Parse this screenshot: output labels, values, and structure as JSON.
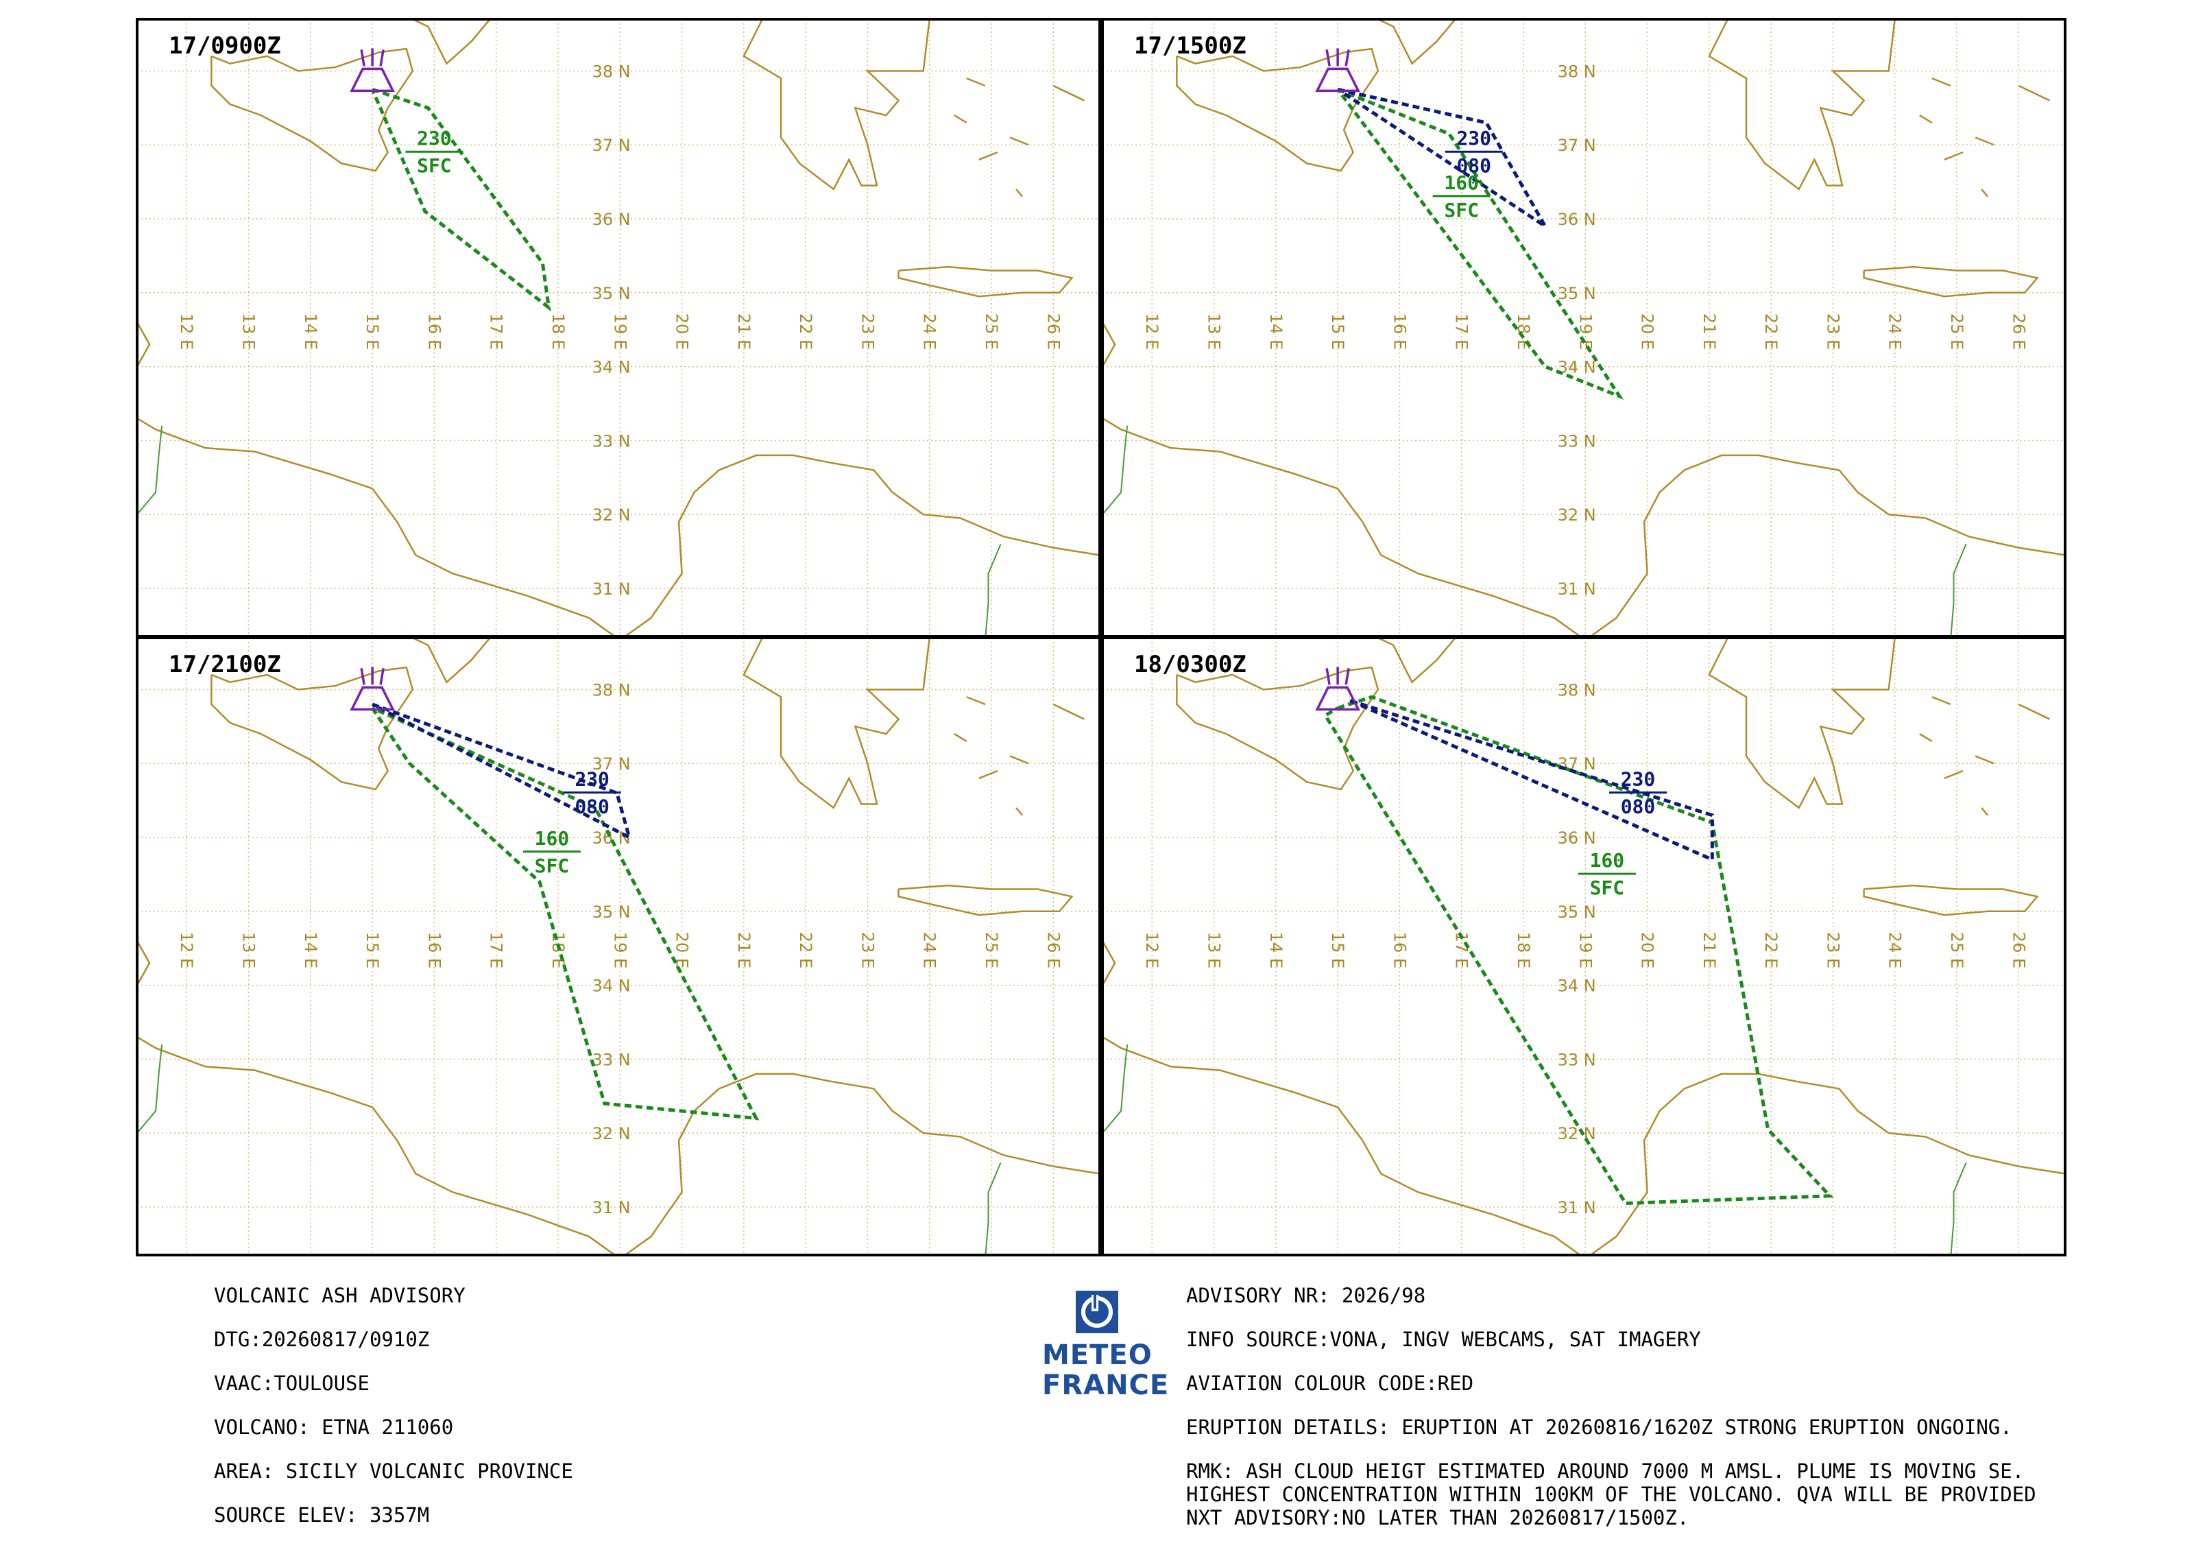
{
  "panels": [
    {
      "time": "17/0900Z",
      "green": {
        "top": "230",
        "bottom": "SFC",
        "polygon": [
          [
            15.0,
            37.75
          ],
          [
            15.9,
            37.5
          ],
          [
            17.75,
            35.4
          ],
          [
            17.85,
            34.8
          ],
          [
            15.85,
            36.1
          ],
          [
            15.0,
            37.75
          ]
        ]
      },
      "blue": null
    },
    {
      "time": "17/1500Z",
      "green": {
        "top": "160",
        "bottom": "SFC",
        "polygon": [
          [
            15.0,
            37.75
          ],
          [
            16.8,
            37.15
          ],
          [
            19.55,
            33.6
          ],
          [
            18.35,
            34.0
          ],
          [
            15.0,
            37.75
          ]
        ]
      },
      "blue": {
        "top": "230",
        "bottom": "080",
        "polygon": [
          [
            15.0,
            37.75
          ],
          [
            17.4,
            37.3
          ],
          [
            18.35,
            35.9
          ],
          [
            15.0,
            37.75
          ]
        ]
      }
    },
    {
      "time": "17/2100Z",
      "green": {
        "top": "160",
        "bottom": "SFC",
        "polygon": [
          [
            15.0,
            37.75
          ],
          [
            15.6,
            37.0
          ],
          [
            17.7,
            35.4
          ],
          [
            18.75,
            32.4
          ],
          [
            21.2,
            32.2
          ],
          [
            18.6,
            36.4
          ],
          [
            15.0,
            37.75
          ]
        ]
      },
      "blue": {
        "top": "230",
        "bottom": "080",
        "polygon": [
          [
            15.0,
            37.8
          ],
          [
            18.95,
            36.6
          ],
          [
            19.15,
            36.0
          ],
          [
            15.0,
            37.8
          ]
        ]
      }
    },
    {
      "time": "18/0300Z",
      "green": {
        "top": "160",
        "bottom": "SFC",
        "polygon": [
          [
            15.0,
            37.75
          ],
          [
            15.55,
            37.9
          ],
          [
            21.05,
            36.2
          ],
          [
            21.95,
            32.05
          ],
          [
            22.95,
            31.15
          ],
          [
            19.65,
            31.05
          ],
          [
            14.8,
            37.65
          ],
          [
            15.0,
            37.75
          ]
        ]
      },
      "blue": {
        "top": "230",
        "bottom": "080",
        "polygon": [
          [
            15.2,
            37.85
          ],
          [
            21.05,
            36.3
          ],
          [
            21.05,
            35.7
          ],
          [
            15.2,
            37.85
          ]
        ]
      }
    }
  ],
  "lat_labels": [
    "31 N",
    "32 N",
    "33 N",
    "34 N",
    "35 N",
    "36 N",
    "37 N",
    "38 N"
  ],
  "lon_labels": [
    "12 E",
    "13 E",
    "14 E",
    "15 E",
    "16 E",
    "17 E",
    "18 E",
    "19 E",
    "20 E",
    "21 E",
    "22 E",
    "23 E",
    "24 E",
    "25 E",
    "26 E"
  ],
  "volcano": {
    "lon": 15.0,
    "lat": 37.75
  },
  "colors": {
    "coast": "#b08d2a",
    "grid": "#d8c07a",
    "green": "#1a8a1a",
    "blue": "#0c1a7a",
    "volcano": "#7a1fb0",
    "border": "#4a9a3a"
  },
  "advisory": {
    "left": [
      "VOLCANIC ASH ADVISORY",
      "DTG:20260817/0910Z",
      "VAAC:TOULOUSE",
      "VOLCANO: ETNA 211060",
      "AREA: SICILY VOLCANIC PROVINCE",
      "SOURCE ELEV: 3357M"
    ],
    "right": [
      "ADVISORY NR: 2026/98",
      "INFO SOURCE:VONA, INGV WEBCAMS, SAT IMAGERY",
      "AVIATION COLOUR CODE:RED",
      "ERUPTION DETAILS: ERUPTION AT 20260816/1620Z STRONG ERUPTION ONGOING.",
      "RMK: ASH CLOUD HEIGT ESTIMATED AROUND 7000 M AMSL. PLUME IS MOVING SE.",
      "HIGHEST CONCENTRATION WITHIN 100KM OF THE VOLCANO. QVA WILL BE PROVIDED",
      "NXT ADVISORY:NO LATER THAN 20260817/1500Z."
    ]
  },
  "logo": {
    "line1": "METEO",
    "line2": "FRANCE"
  }
}
